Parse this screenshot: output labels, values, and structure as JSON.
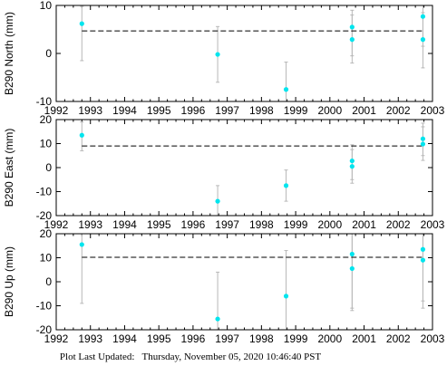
{
  "footer": {
    "label": "Plot Last Updated:",
    "timestamp": "Thursday, November 05, 2020 10:46:40 PST"
  },
  "chart_data": [
    {
      "type": "scatter",
      "ylabel": "B290 North (mm)",
      "xlim": [
        1992,
        2003
      ],
      "ylim": [
        -10,
        10
      ],
      "xticks": [
        "1992",
        "1993",
        "1994",
        "1995",
        "1996",
        "1997",
        "1998",
        "1999",
        "2000",
        "2001",
        "2002",
        "2003"
      ],
      "yticks": [
        "-10",
        "0",
        "10"
      ],
      "reference_line": 4.7,
      "point_color": "#00e5ee",
      "points": [
        {
          "x": 1992.75,
          "y": 6.2,
          "lo": -1.5,
          "hi": 9.8
        },
        {
          "x": 1996.72,
          "y": -0.2,
          "lo": -6.0,
          "hi": 5.6
        },
        {
          "x": 1998.72,
          "y": -7.5,
          "lo": -10.0,
          "hi": -1.8
        },
        {
          "x": 2000.65,
          "y": 5.5,
          "lo": -0.5,
          "hi": 9.0
        },
        {
          "x": 2000.65,
          "y": 2.9,
          "lo": -2.0,
          "hi": 8.0
        },
        {
          "x": 2002.72,
          "y": 7.7,
          "lo": 1.5,
          "hi": 10.0
        },
        {
          "x": 2002.72,
          "y": 2.9,
          "lo": -3.0,
          "hi": 8.5
        }
      ]
    },
    {
      "type": "scatter",
      "ylabel": "B290 East (mm)",
      "xlim": [
        1992,
        2003
      ],
      "ylim": [
        -20,
        20
      ],
      "xticks": [
        "1992",
        "1993",
        "1994",
        "1995",
        "1996",
        "1997",
        "1998",
        "1999",
        "2000",
        "2001",
        "2002",
        "2003"
      ],
      "yticks": [
        "-20",
        "-10",
        "0",
        "10",
        "20"
      ],
      "reference_line": 9.0,
      "point_color": "#00e5ee",
      "points": [
        {
          "x": 1992.75,
          "y": 13.5,
          "lo": 7.0,
          "hi": 19.0
        },
        {
          "x": 1996.72,
          "y": -14.0,
          "lo": -20.0,
          "hi": -7.5
        },
        {
          "x": 1998.72,
          "y": -7.5,
          "lo": -14.0,
          "hi": -1.0
        },
        {
          "x": 2000.65,
          "y": 2.8,
          "lo": -5.0,
          "hi": 9.5
        },
        {
          "x": 2000.65,
          "y": 0.5,
          "lo": -6.5,
          "hi": 7.5
        },
        {
          "x": 2002.72,
          "y": 12.0,
          "lo": 5.0,
          "hi": 18.5
        },
        {
          "x": 2002.72,
          "y": 9.8,
          "lo": 3.0,
          "hi": 17.0
        }
      ]
    },
    {
      "type": "scatter",
      "ylabel": "B290 Up (mm)",
      "xlim": [
        1992,
        2003
      ],
      "ylim": [
        -20,
        20
      ],
      "xticks": [
        "1992",
        "1993",
        "1994",
        "1995",
        "1996",
        "1997",
        "1998",
        "1999",
        "2000",
        "2001",
        "2002",
        "2003"
      ],
      "yticks": [
        "-20",
        "-10",
        "0",
        "10",
        "20"
      ],
      "reference_line": 10.2,
      "point_color": "#00e5ee",
      "points": [
        {
          "x": 1992.75,
          "y": 15.5,
          "lo": -9.0,
          "hi": 20.0
        },
        {
          "x": 1996.72,
          "y": -15.5,
          "lo": -20.0,
          "hi": 4.0
        },
        {
          "x": 1998.72,
          "y": -6.0,
          "lo": -20.0,
          "hi": 13.0
        },
        {
          "x": 2000.65,
          "y": 11.5,
          "lo": -12.0,
          "hi": 20.0
        },
        {
          "x": 2000.65,
          "y": 5.5,
          "lo": -11.0,
          "hi": 20.0
        },
        {
          "x": 2002.72,
          "y": 13.5,
          "lo": -8.0,
          "hi": 20.0
        },
        {
          "x": 2002.72,
          "y": 9.0,
          "lo": -11.0,
          "hi": 20.0
        }
      ]
    }
  ]
}
